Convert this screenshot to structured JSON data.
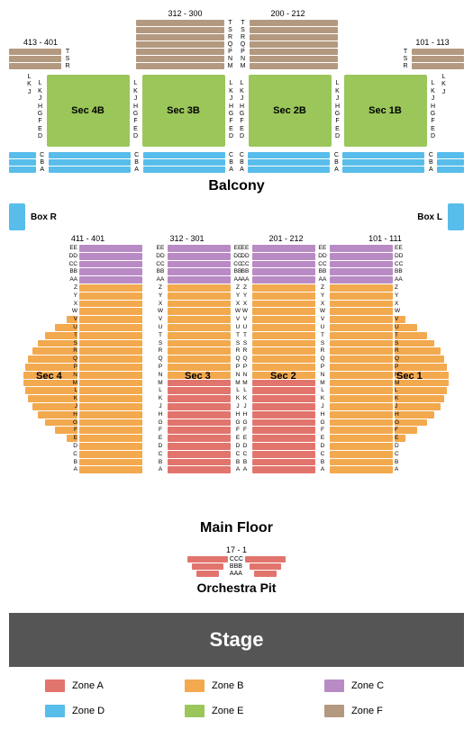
{
  "colors": {
    "zoneA": "#e2746e",
    "zoneB": "#f3a94e",
    "zoneC": "#b98bc4",
    "zoneD": "#58bdea",
    "zoneE": "#9bc65a",
    "zoneF": "#b39980",
    "stage": "#555555",
    "text": "#000000"
  },
  "balcony": {
    "title": "Balcony",
    "upper": {
      "left_range": "413 - 401",
      "center_left_range": "312 - 300",
      "center_right_range": "200 - 212",
      "right_range": "101 - 113",
      "side_rows": [
        "T",
        "S",
        "R"
      ],
      "center_rows": [
        "Q",
        "P",
        "N",
        "M"
      ]
    },
    "mid": {
      "row_labels": [
        "L",
        "K",
        "J",
        "H",
        "G",
        "F",
        "E",
        "D"
      ],
      "outer_labels": [
        "L",
        "K",
        "J"
      ],
      "sections": [
        "Sec 4B",
        "Sec 3B",
        "Sec 2B",
        "Sec 1B"
      ]
    },
    "lower": {
      "row_labels": [
        "C",
        "B",
        "A"
      ]
    }
  },
  "boxes": {
    "left": "Box R",
    "right": "Box L"
  },
  "main": {
    "title": "Main Floor",
    "ranges": [
      "411 - 401",
      "312 - 301",
      "201 - 212",
      "101 - 111"
    ],
    "top_rows": [
      "EE",
      "DD",
      "CC",
      "BB",
      "AA"
    ],
    "mid_rows": [
      "Z",
      "Y",
      "X",
      "W",
      "V",
      "U",
      "T",
      "S",
      "R",
      "Q",
      "P",
      "N",
      "M",
      "L",
      "K",
      "J",
      "H",
      "G",
      "F",
      "E",
      "D",
      "C",
      "B",
      "A"
    ],
    "sections": [
      "Sec 4",
      "Sec 3",
      "Sec 2",
      "Sec 1"
    ]
  },
  "pit": {
    "title": "Orchestra Pit",
    "range": "17 - 1",
    "rows": [
      "CCC",
      "BBB",
      "AAA"
    ]
  },
  "stage": {
    "label": "Stage"
  },
  "legend": [
    {
      "label": "Zone A",
      "color": "#e2746e"
    },
    {
      "label": "Zone B",
      "color": "#f3a94e"
    },
    {
      "label": "Zone C",
      "color": "#b98bc4"
    },
    {
      "label": "Zone D",
      "color": "#58bdea"
    },
    {
      "label": "Zone E",
      "color": "#9bc65a"
    },
    {
      "label": "Zone F",
      "color": "#b39980"
    }
  ]
}
